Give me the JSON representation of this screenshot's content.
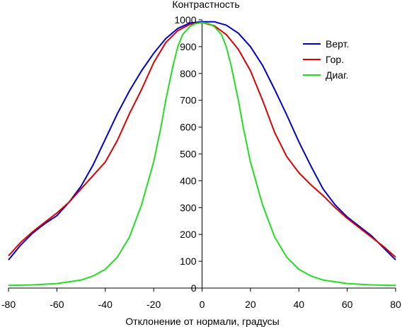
{
  "chart_data": {
    "type": "line",
    "title": "",
    "xlabel": "Отклонение от нормали, градусы",
    "ylabel": "Контрастность",
    "xlim": [
      -80,
      80
    ],
    "ylim": [
      0,
      1000
    ],
    "x_ticks": [
      "-80",
      "-60",
      "-40",
      "-20",
      "0",
      "20",
      "40",
      "60",
      "80"
    ],
    "y_ticks": [
      "0",
      "100",
      "200",
      "300",
      "400",
      "500",
      "600",
      "700",
      "800",
      "900",
      "1000"
    ],
    "grid": false,
    "legend_position": "top-right",
    "series": [
      {
        "name": "Верт.",
        "color": "#0000cc",
        "x": [
          -80,
          -75,
          -70,
          -65,
          -60,
          -55,
          -50,
          -45,
          -40,
          -35,
          -30,
          -25,
          -20,
          -15,
          -10,
          -5,
          0,
          5,
          10,
          15,
          20,
          25,
          30,
          35,
          40,
          45,
          50,
          55,
          60,
          65,
          70,
          75,
          80
        ],
        "y": [
          105,
          160,
          205,
          240,
          270,
          320,
          380,
          460,
          555,
          650,
          735,
          810,
          875,
          930,
          968,
          988,
          993,
          993,
          980,
          950,
          900,
          830,
          740,
          645,
          545,
          455,
          370,
          310,
          265,
          230,
          195,
          150,
          105
        ]
      },
      {
        "name": "Гор.",
        "color": "#dd0000",
        "x": [
          -80,
          -75,
          -70,
          -65,
          -60,
          -55,
          -50,
          -45,
          -40,
          -35,
          -30,
          -25,
          -20,
          -15,
          -10,
          -5,
          0,
          5,
          10,
          15,
          20,
          25,
          30,
          35,
          40,
          45,
          50,
          55,
          60,
          65,
          70,
          75,
          80
        ],
        "y": [
          120,
          170,
          210,
          245,
          280,
          320,
          370,
          420,
          470,
          550,
          650,
          740,
          840,
          915,
          960,
          983,
          990,
          978,
          945,
          890,
          810,
          700,
          580,
          490,
          430,
          385,
          345,
          300,
          260,
          225,
          190,
          155,
          115
        ]
      },
      {
        "name": "Диаг.",
        "color": "#22dd22",
        "x": [
          -80,
          -70,
          -60,
          -50,
          -45,
          -40,
          -35,
          -30,
          -25,
          -20,
          -17,
          -15,
          -12,
          -10,
          -8,
          -5,
          -3,
          0,
          3,
          5,
          8,
          10,
          12,
          15,
          17,
          20,
          25,
          30,
          35,
          40,
          45,
          50,
          60,
          70,
          80
        ],
        "y": [
          10,
          12,
          17,
          30,
          45,
          70,
          115,
          190,
          310,
          470,
          600,
          700,
          830,
          900,
          945,
          975,
          985,
          990,
          985,
          975,
          945,
          900,
          830,
          700,
          600,
          470,
          310,
          190,
          115,
          70,
          45,
          30,
          17,
          12,
          10
        ]
      }
    ]
  }
}
